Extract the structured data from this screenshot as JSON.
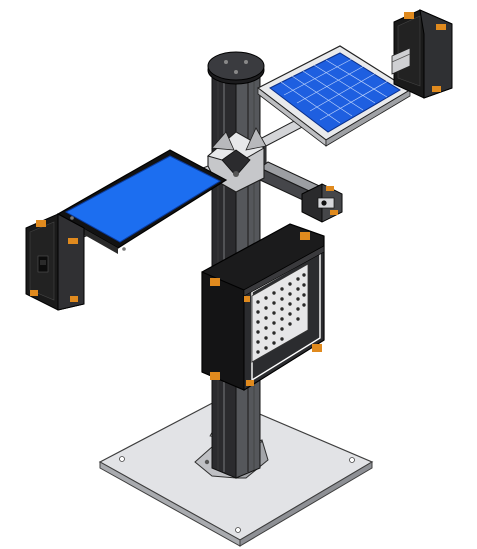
{
  "scene": {
    "subject": "cad-assembly",
    "colors": {
      "background": "#ffffff",
      "base_plate": "#dcdde0",
      "base_edge": "#4a4a4a",
      "profile": "#2a2a2c",
      "profile_light": "#5a5b5f",
      "bracket": "#c8c9cc",
      "panel_blue": "#1a6ff0",
      "cell_blue": "#1f5fe0",
      "frame_white": "#f0f0f0",
      "board_black": "#101010",
      "enclosure": "#1b1b1b",
      "accent_orange": "#e08a1e",
      "perforated": "#e6e6e6"
    }
  }
}
